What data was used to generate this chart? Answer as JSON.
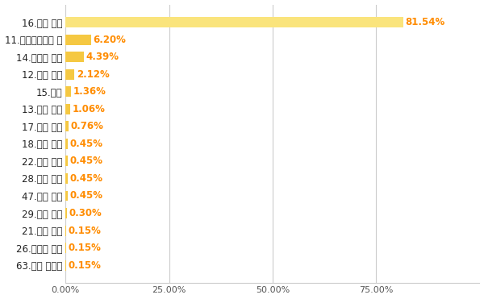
{
  "categories": [
    "63.山崎 颯一郎",
    "26.宇田川 優希",
    "21.今永 昇太",
    "29.宮城 大弥",
    "47.髙橋 奎二",
    "28.髙橋 宏斗",
    "22.湯浅 京己",
    "18.山本 由伸",
    "17.伊藤 大海",
    "13.松井 裕樹",
    "15.大勢",
    "12.戸郷 翔征",
    "14.佐々木 朗希",
    "11.ダルビッシュ 有",
    "16.大谷 翔平"
  ],
  "values": [
    0.15,
    0.15,
    0.15,
    0.3,
    0.45,
    0.45,
    0.45,
    0.45,
    0.76,
    1.06,
    1.36,
    2.12,
    4.39,
    6.2,
    81.54
  ],
  "bar_color_large": "#FAE47C",
  "bar_color_medium": "#F5C842",
  "bar_color_small": "#F5C842",
  "value_color": "#FF8C00",
  "label_color": "#222222",
  "background_color": "#ffffff",
  "grid_color": "#cccccc",
  "xlim_max": 100,
  "xtick_labels": [
    "0.00%",
    "25.00%",
    "50.00%",
    "75.00%"
  ],
  "xtick_values": [
    0,
    25,
    50,
    75
  ],
  "fontsize_labels": 8.5,
  "fontsize_values": 8.5,
  "bar_height": 0.6,
  "figsize": [
    6.0,
    3.71
  ],
  "dpi": 100
}
